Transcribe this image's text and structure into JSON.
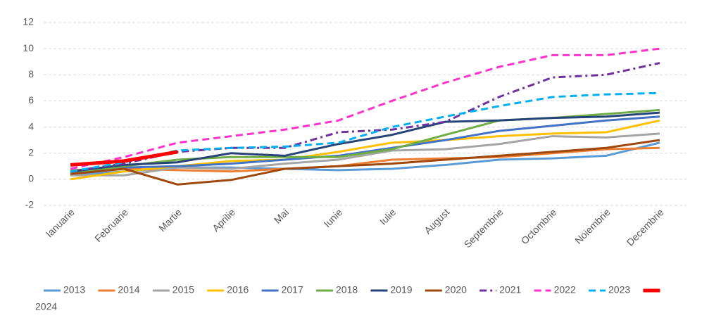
{
  "chart_data": {
    "type": "line",
    "categories": [
      "Ianuarie",
      "Februarie",
      "Martie",
      "Aprilie",
      "Mai",
      "Iunie",
      "Iulie",
      "August",
      "Septembrie",
      "Octombrie",
      "Noiembrie",
      "Decembrie"
    ],
    "ylim": [
      -2,
      12
    ],
    "yticks": [
      -2,
      0,
      2,
      4,
      6,
      8,
      10,
      12
    ],
    "grid": true,
    "legend": "bottom",
    "series": [
      {
        "name": "2013",
        "color": "#5b9bd5",
        "dash": "solid",
        "values": [
          0.3,
          0.6,
          0.9,
          0.9,
          0.8,
          0.7,
          0.8,
          1.1,
          1.5,
          1.6,
          1.8,
          2.8
        ]
      },
      {
        "name": "2014",
        "color": "#ed7d31",
        "dash": "solid",
        "values": [
          0.7,
          0.8,
          0.7,
          0.6,
          0.8,
          1.0,
          1.5,
          1.6,
          1.7,
          2.0,
          2.3,
          2.4
        ]
      },
      {
        "name": "2015",
        "color": "#a5a5a5",
        "dash": "solid",
        "values": [
          0.3,
          0.3,
          0.9,
          0.8,
          1.2,
          1.5,
          2.2,
          2.3,
          2.7,
          3.3,
          3.2,
          3.5
        ]
      },
      {
        "name": "2016",
        "color": "#ffc000",
        "dash": "solid",
        "values": [
          0.0,
          0.6,
          1.0,
          1.4,
          1.5,
          2.1,
          2.8,
          3.0,
          3.3,
          3.5,
          3.6,
          4.5
        ]
      },
      {
        "name": "2017",
        "color": "#4472c4",
        "dash": "solid",
        "values": [
          0.5,
          0.9,
          1.0,
          1.2,
          1.5,
          1.8,
          2.4,
          3.0,
          3.7,
          4.1,
          4.5,
          4.8
        ]
      },
      {
        "name": "2018",
        "color": "#70ad47",
        "dash": "solid",
        "values": [
          0.4,
          1.0,
          1.5,
          1.7,
          1.7,
          1.7,
          2.3,
          3.4,
          4.5,
          4.7,
          5.0,
          5.3
        ]
      },
      {
        "name": "2019",
        "color": "#264478",
        "dash": "solid",
        "values": [
          0.6,
          1.1,
          1.3,
          2.0,
          1.8,
          2.7,
          3.4,
          4.4,
          4.5,
          4.7,
          4.8,
          5.1
        ]
      },
      {
        "name": "2020",
        "color": "#9e480e",
        "dash": "solid",
        "values": [
          0.4,
          0.8,
          -0.4,
          -0.05,
          0.8,
          1.0,
          1.2,
          1.5,
          1.8,
          2.1,
          2.4,
          3.0
        ]
      },
      {
        "name": "2021",
        "color": "#7030a0",
        "dash": "dashdot",
        "values": [
          0.6,
          1.2,
          2.1,
          2.4,
          2.4,
          3.6,
          3.8,
          4.4,
          6.3,
          7.8,
          8.0,
          8.9
        ]
      },
      {
        "name": "2022",
        "color": "#ff33cc",
        "dash": "dash",
        "values": [
          0.8,
          1.7,
          2.8,
          3.3,
          3.8,
          4.5,
          6.0,
          7.4,
          8.6,
          9.5,
          9.5,
          10.0
        ]
      },
      {
        "name": "2023",
        "color": "#00b0f0",
        "dash": "dash",
        "values": [
          0.6,
          1.3,
          2.2,
          2.4,
          2.5,
          2.8,
          4.0,
          4.8,
          5.6,
          6.3,
          6.5,
          6.6
        ]
      },
      {
        "name": "2024",
        "color": "#ff0000",
        "dash": "thick",
        "values": [
          1.1,
          1.4,
          2.1,
          null,
          null,
          null,
          null,
          null,
          null,
          null,
          null,
          null
        ]
      }
    ]
  }
}
